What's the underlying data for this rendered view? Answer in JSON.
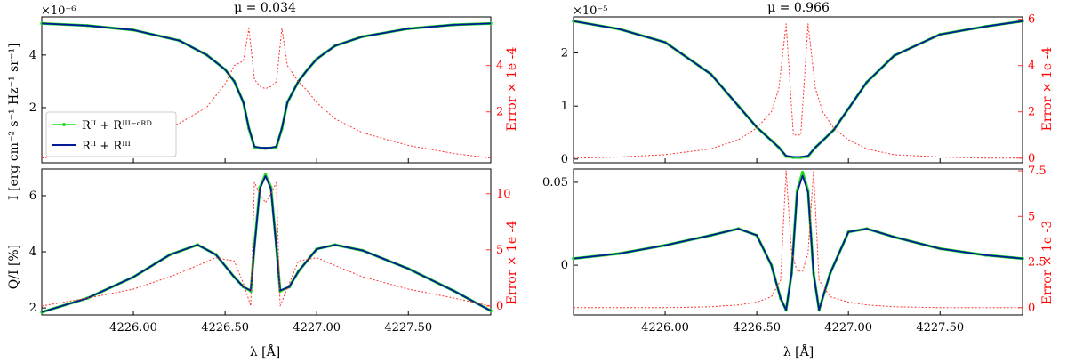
{
  "colors": {
    "model_crd": "#22dd22",
    "model_full": "#001a99",
    "error": "#ff3333",
    "axis": "#000000"
  },
  "labels": {
    "mu_left": "μ = 0.034",
    "mu_right": "μ = 0.966",
    "ylabel_intensity": "I  [erg cm⁻² s⁻¹ Hz⁻¹ sr⁻¹]",
    "ylabel_pol": "Q/I [%]",
    "xlabel": "λ [Å]",
    "error_label_1e4": "Error  × 1e -4",
    "error_label_1e3": "Error  × 1e -3",
    "scale_left": "×10⁻⁶",
    "scale_right": "×10⁻⁵",
    "legend_crd": "Rᴵᴵ + Rᴵᴵᴵ⁻ᶜᴿᴰ",
    "legend_full": "Rᴵᴵ + Rᴵᴵᴵ"
  },
  "chart_data": [
    {
      "type": "line",
      "title": "μ = 0.034",
      "panel": "intensity",
      "ylabel": "I [erg cm⁻² s⁻¹ Hz⁻¹ sr⁻¹]",
      "xlim": [
        4225.5,
        4227.95
      ],
      "ylim": [
        -0.1,
        5.45
      ],
      "x_ticks": [
        "4226.00",
        "4226.50",
        "4227.00",
        "4227.50"
      ],
      "y_ticks": [
        2,
        4
      ],
      "y_scale_label": "×10⁻⁶",
      "x": [
        4225.5,
        4225.75,
        4226.0,
        4226.25,
        4226.4,
        4226.5,
        4226.55,
        4226.6,
        4226.63,
        4226.66,
        4226.69,
        4226.72,
        4226.75,
        4226.78,
        4226.81,
        4226.84,
        4226.9,
        4226.95,
        4227.0,
        4227.1,
        4227.25,
        4227.5,
        4227.75,
        4227.95
      ],
      "series": [
        {
          "name": "Rᴵᴵ + Rᴵᴵᴵ⁻ᶜᴿᴰ",
          "values": [
            5.2,
            5.12,
            4.95,
            4.55,
            4.0,
            3.45,
            3.0,
            2.2,
            1.2,
            0.5,
            0.46,
            0.45,
            0.46,
            0.5,
            1.2,
            2.2,
            3.0,
            3.45,
            3.85,
            4.35,
            4.7,
            5.0,
            5.15,
            5.2
          ]
        },
        {
          "name": "Rᴵᴵ + Rᴵᴵᴵ",
          "values": [
            5.2,
            5.12,
            4.95,
            4.55,
            4.0,
            3.45,
            3.0,
            2.2,
            1.22,
            0.52,
            0.48,
            0.47,
            0.48,
            0.52,
            1.22,
            2.2,
            3.0,
            3.45,
            3.85,
            4.35,
            4.7,
            5.0,
            5.15,
            5.2
          ]
        },
        {
          "name": "Error",
          "axis": "right",
          "ylim": [
            -0.2,
            6.1
          ],
          "y_ticks": [
            2,
            4
          ],
          "values": [
            0.0,
            0.3,
            0.8,
            1.5,
            2.2,
            3.2,
            4.0,
            4.2,
            5.6,
            3.4,
            3.1,
            3.0,
            3.1,
            3.3,
            5.6,
            4.0,
            3.3,
            2.9,
            2.4,
            1.7,
            1.1,
            0.55,
            0.2,
            0.0
          ]
        }
      ]
    },
    {
      "type": "line",
      "title": "μ = 0.034",
      "panel": "polarization",
      "ylabel": "Q/I [%]",
      "xlabel": "λ [Å]",
      "xlim": [
        4225.5,
        4227.95
      ],
      "ylim": [
        1.75,
        6.95
      ],
      "x_ticks": [
        "4226.00",
        "4226.50",
        "4227.00",
        "4227.50"
      ],
      "y_ticks": [
        2,
        4,
        6
      ],
      "x": [
        4225.5,
        4225.75,
        4226.0,
        4226.2,
        4226.35,
        4226.45,
        4226.55,
        4226.6,
        4226.64,
        4226.66,
        4226.69,
        4226.72,
        4226.75,
        4226.78,
        4226.8,
        4226.85,
        4226.9,
        4227.0,
        4227.1,
        4227.25,
        4227.5,
        4227.75,
        4227.95
      ],
      "series": [
        {
          "name": "Rᴵᴵ + Rᴵᴵᴵ⁻ᶜᴿᴰ",
          "values": [
            1.85,
            2.35,
            3.1,
            3.9,
            4.25,
            3.9,
            3.1,
            2.75,
            2.6,
            4.2,
            6.3,
            6.75,
            6.3,
            4.2,
            2.6,
            2.75,
            3.3,
            4.1,
            4.25,
            4.05,
            3.4,
            2.6,
            1.9
          ]
        },
        {
          "name": "Rᴵᴵ + Rᴵᴵᴵ",
          "values": [
            1.85,
            2.35,
            3.1,
            3.9,
            4.25,
            3.9,
            3.1,
            2.75,
            2.62,
            4.15,
            6.25,
            6.7,
            6.25,
            4.15,
            2.62,
            2.75,
            3.3,
            4.1,
            4.25,
            4.05,
            3.4,
            2.6,
            1.9
          ]
        },
        {
          "name": "Error",
          "axis": "right",
          "ylim": [
            -0.8,
            12.2
          ],
          "y_ticks": [
            0,
            5,
            10
          ],
          "values": [
            0.0,
            0.7,
            1.5,
            2.6,
            3.6,
            4.3,
            4.0,
            2.0,
            0.0,
            11.0,
            10.0,
            9.2,
            10.0,
            11.0,
            0.0,
            2.0,
            4.0,
            4.3,
            3.6,
            2.6,
            1.5,
            0.7,
            0.0
          ]
        }
      ]
    },
    {
      "type": "line",
      "title": "μ = 0.966",
      "panel": "intensity",
      "xlim": [
        4225.5,
        4227.95
      ],
      "ylim": [
        -0.07,
        2.68
      ],
      "x_ticks": [
        "4226.00",
        "4226.50",
        "4227.00",
        "4227.50"
      ],
      "y_ticks": [
        0,
        1,
        2
      ],
      "y_scale_label": "×10⁻⁵",
      "x": [
        4225.5,
        4225.75,
        4226.0,
        4226.25,
        4226.4,
        4226.5,
        4226.58,
        4226.62,
        4226.66,
        4226.7,
        4226.74,
        4226.78,
        4226.82,
        4226.86,
        4226.92,
        4227.0,
        4227.1,
        4227.25,
        4227.5,
        4227.75,
        4227.95
      ],
      "series": [
        {
          "name": "Rᴵᴵ + Rᴵᴵᴵ⁻ᶜᴿᴰ",
          "values": [
            2.6,
            2.45,
            2.2,
            1.6,
            1.0,
            0.6,
            0.35,
            0.22,
            0.05,
            0.03,
            0.03,
            0.05,
            0.22,
            0.35,
            0.55,
            0.95,
            1.45,
            1.95,
            2.35,
            2.5,
            2.6
          ]
        },
        {
          "name": "Rᴵᴵ + Rᴵᴵᴵ",
          "values": [
            2.6,
            2.45,
            2.2,
            1.6,
            1.0,
            0.6,
            0.35,
            0.22,
            0.06,
            0.04,
            0.04,
            0.06,
            0.22,
            0.35,
            0.55,
            0.95,
            1.45,
            1.95,
            2.35,
            2.5,
            2.6
          ]
        },
        {
          "name": "Error",
          "axis": "right",
          "ylim": [
            -0.2,
            6.1
          ],
          "y_ticks": [
            0,
            2,
            4,
            6
          ],
          "values": [
            0.0,
            0.05,
            0.15,
            0.4,
            0.8,
            1.3,
            2.0,
            3.0,
            5.8,
            1.0,
            1.0,
            5.8,
            3.0,
            2.0,
            1.3,
            0.8,
            0.4,
            0.15,
            0.05,
            0.0,
            0.0
          ]
        }
      ]
    },
    {
      "type": "line",
      "title": "μ = 0.966",
      "panel": "polarization",
      "xlabel": "λ [Å]",
      "xlim": [
        4225.5,
        4227.95
      ],
      "ylim": [
        -0.03,
        0.058
      ],
      "x_ticks": [
        "4226.00",
        "4226.50",
        "4227.00",
        "4227.50"
      ],
      "y_ticks": [
        0,
        0.05
      ],
      "x": [
        4225.5,
        4225.75,
        4226.0,
        4226.25,
        4226.4,
        4226.5,
        4226.58,
        4226.63,
        4226.66,
        4226.69,
        4226.72,
        4226.75,
        4226.78,
        4226.81,
        4226.84,
        4226.9,
        4227.0,
        4227.1,
        4227.25,
        4227.5,
        4227.75,
        4227.95
      ],
      "series": [
        {
          "name": "Rᴵᴵ + Rᴵᴵᴵ⁻ᶜᴿᴰ",
          "values": [
            0.004,
            0.007,
            0.012,
            0.018,
            0.022,
            0.018,
            0.0,
            -0.02,
            -0.027,
            -0.005,
            0.045,
            0.056,
            0.045,
            -0.005,
            -0.027,
            -0.005,
            0.02,
            0.022,
            0.017,
            0.01,
            0.006,
            0.004
          ]
        },
        {
          "name": "Rᴵᴵ + Rᴵᴵᴵ",
          "values": [
            0.004,
            0.007,
            0.012,
            0.018,
            0.022,
            0.018,
            0.0,
            -0.02,
            -0.027,
            -0.005,
            0.044,
            0.054,
            0.044,
            -0.005,
            -0.027,
            -0.005,
            0.02,
            0.022,
            0.017,
            0.01,
            0.006,
            0.004
          ]
        },
        {
          "name": "Error",
          "axis": "right",
          "ylim": [
            -0.4,
            7.6
          ],
          "y_ticks": [
            0,
            2.5,
            5,
            7.5
          ],
          "values": [
            0.0,
            0.0,
            0.0,
            0.05,
            0.15,
            0.3,
            0.6,
            1.5,
            7.5,
            3.0,
            2.0,
            2.0,
            3.0,
            7.5,
            1.5,
            0.6,
            0.3,
            0.15,
            0.05,
            0.0,
            0.0,
            0.0
          ]
        }
      ]
    }
  ]
}
